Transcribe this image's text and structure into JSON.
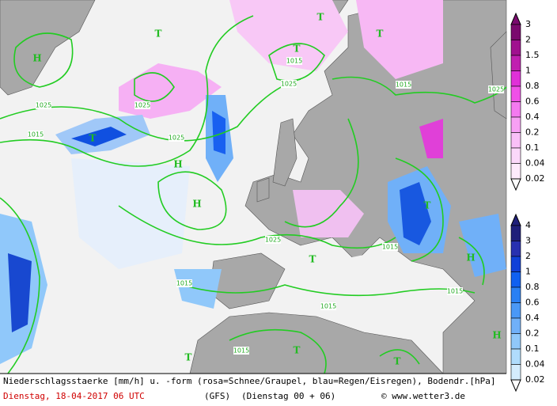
{
  "map": {
    "isobar_labels": [
      "1015",
      "1015",
      "1015",
      "1015",
      "1015",
      "1015",
      "1015",
      "1015",
      "1025",
      "1025",
      "1025",
      "1025",
      "1025",
      "1025"
    ],
    "pressure_centers": [
      "H",
      "H",
      "H",
      "H",
      "H",
      "T",
      "T",
      "T",
      "T",
      "T",
      "T",
      "T",
      "T",
      "T",
      "T"
    ]
  },
  "legend": {
    "snow": {
      "labels": [
        "3",
        "2",
        "1.5",
        "1",
        "0.8",
        "0.6",
        "0.4",
        "0.2",
        "0.1",
        "0.04",
        "0.02"
      ],
      "colors": [
        "#7a0a6e",
        "#a0108f",
        "#c020b0",
        "#e030d8",
        "#f050e8",
        "#f47af0",
        "#f7a0f4",
        "#f9c0f7",
        "#fbd8fa",
        "#fdeafc",
        "#ffffff"
      ]
    },
    "rain": {
      "labels": [
        "4",
        "3",
        "2",
        "1",
        "0.8",
        "0.6",
        "0.4",
        "0.2",
        "0.1",
        "0.04",
        "0.02"
      ],
      "colors": [
        "#20207a",
        "#2830b0",
        "#1040d8",
        "#1060f0",
        "#2a80f4",
        "#4a98f6",
        "#70b0f8",
        "#90c8fa",
        "#b0dcfc",
        "#d4ecfd",
        "#ffffff"
      ]
    }
  },
  "footer": {
    "line1": "Niederschlagsstaerke [mm/h] u. -form (rosa=Schnee/Graupel, blau=Regen/Eisregen), Bodendr.[hPa]",
    "date": "Dienstag, 18-04-2017  06 UTC",
    "model": "(GFS)",
    "run": "(Dienstag 00 + 06)",
    "credit": "© www.wetter3.de"
  }
}
